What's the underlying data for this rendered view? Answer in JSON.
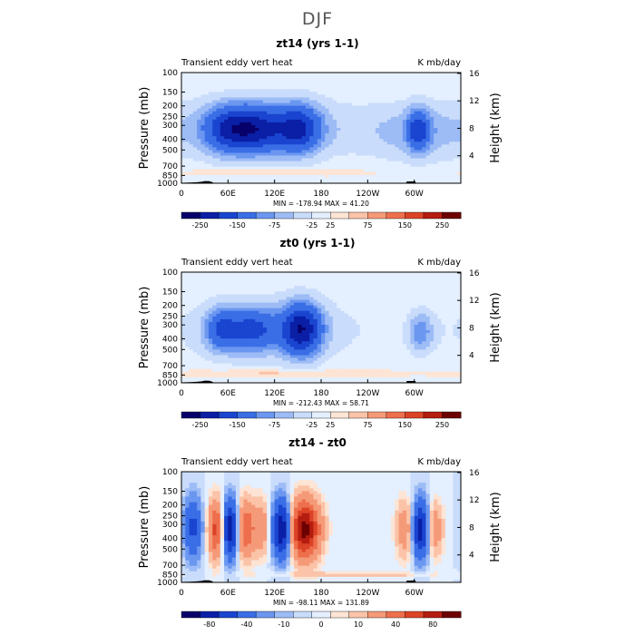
{
  "figure": {
    "title": "DJF"
  },
  "colors": {
    "full_palette": [
      "#08006a",
      "#0a1fa6",
      "#1a45d0",
      "#3a6ee6",
      "#6b97f0",
      "#9dbcf6",
      "#c9dcfb",
      "#e4efff",
      "#fde4d4",
      "#fbc3a8",
      "#f59a78",
      "#ee6f4d",
      "#dc4326",
      "#b51d10",
      "#6d0000"
    ],
    "diff_palette": [
      "#08006a",
      "#0a1fa6",
      "#1a45d0",
      "#3a6ee6",
      "#6b97f0",
      "#9dbcf6",
      "#c9dcfb",
      "#e4efff",
      "#fde4d4",
      "#fbc3a8",
      "#f59a78",
      "#ee6f4d",
      "#dc4326",
      "#b51d10",
      "#6d0000"
    ],
    "land": "#000000"
  },
  "chart_data": [
    {
      "type": "heatmap",
      "title": "zt14 (yrs 1-1)",
      "left_label": "Transient eddy vert heat",
      "right_label": "K mb/day",
      "ylabel": "Pressure  (mb)",
      "ylabel_right": "Height  (km)",
      "stats": "MIN = -178.94   MAX =  41.20",
      "min": -178.94,
      "max": 41.2,
      "x_ticks": [
        "0",
        "60E",
        "120E",
        "180",
        "120W",
        "60W"
      ],
      "y_ticks": [
        "100",
        "150",
        "200",
        "250",
        "300",
        "400",
        "500",
        "700",
        "850",
        "1000"
      ],
      "height_ticks": [
        "16",
        "12",
        "8",
        "4"
      ],
      "colorbar_labels": [
        "-250",
        "-150",
        "-75",
        "-25",
        "25",
        "75",
        "150",
        "250"
      ],
      "xlim": [
        0,
        360
      ],
      "ylim": [
        1000,
        100
      ],
      "log_y": true,
      "features": [
        {
          "lon": 60,
          "p": 325,
          "v": -150,
          "wlon": 22,
          "wz": 0.34
        },
        {
          "lon": 98,
          "p": 325,
          "v": -150,
          "wlon": 22,
          "wz": 0.34
        },
        {
          "lon": 150,
          "p": 320,
          "v": -170,
          "wlon": 20,
          "wz": 0.34
        },
        {
          "lon": 305,
          "p": 330,
          "v": -130,
          "wlon": 10,
          "wz": 0.3
        },
        {
          "lon": 110,
          "p": 320,
          "v": -60,
          "wlon": 110,
          "wz": 0.5
        },
        {
          "lon": 300,
          "p": 350,
          "v": -50,
          "wlon": 40,
          "wz": 0.45
        },
        {
          "lon": 120,
          "p": 800,
          "v": 35,
          "wlon": 80,
          "wz": 0.05
        }
      ]
    },
    {
      "type": "heatmap",
      "title": "zt0 (yrs 1-1)",
      "left_label": "Transient eddy vert heat",
      "right_label": "K mb/day",
      "ylabel": "Pressure  (mb)",
      "ylabel_right": "Height  (km)",
      "stats": "MIN = -212.43   MAX =  58.71",
      "min": -212.43,
      "max": 58.71,
      "x_ticks": [
        "0",
        "60E",
        "120E",
        "180",
        "120W",
        "60W"
      ],
      "y_ticks": [
        "100",
        "150",
        "200",
        "250",
        "300",
        "400",
        "500",
        "700",
        "850",
        "1000"
      ],
      "height_ticks": [
        "16",
        "12",
        "8",
        "4"
      ],
      "colorbar_labels": [
        "-250",
        "-150",
        "-75",
        "-25",
        "25",
        "75",
        "150",
        "250"
      ],
      "xlim": [
        0,
        360
      ],
      "ylim": [
        1000,
        100
      ],
      "log_y": true,
      "features": [
        {
          "lon": 50,
          "p": 330,
          "v": -100,
          "wlon": 14,
          "wz": 0.3
        },
        {
          "lon": 90,
          "p": 330,
          "v": -130,
          "wlon": 24,
          "wz": 0.32
        },
        {
          "lon": 155,
          "p": 330,
          "v": -210,
          "wlon": 18,
          "wz": 0.38
        },
        {
          "lon": 308,
          "p": 350,
          "v": -80,
          "wlon": 12,
          "wz": 0.3
        },
        {
          "lon": 110,
          "p": 330,
          "v": -45,
          "wlon": 110,
          "wz": 0.55
        },
        {
          "lon": 120,
          "p": 820,
          "v": 40,
          "wlon": 90,
          "wz": 0.05
        }
      ]
    },
    {
      "type": "heatmap",
      "title": "zt14 - zt0",
      "left_label": "Transient eddy vert heat",
      "right_label": "K mb/day",
      "ylabel": "Pressure  (mb)",
      "ylabel_right": "Height  (km)",
      "stats": "MIN = -98.11   MAX = 131.89",
      "min": -98.11,
      "max": 131.89,
      "x_ticks": [
        "0",
        "60E",
        "120E",
        "180",
        "120W",
        "60W"
      ],
      "y_ticks": [
        "100",
        "150",
        "200",
        "250",
        "300",
        "400",
        "500",
        "700",
        "850",
        "1000"
      ],
      "height_ticks": [
        "16",
        "12",
        "8",
        "4"
      ],
      "colorbar_labels": [
        "-80",
        "-40",
        "-10",
        "0",
        "10",
        "40",
        "80"
      ],
      "xlim": [
        0,
        360
      ],
      "ylim": [
        1000,
        100
      ],
      "log_y": true,
      "features": [
        {
          "lon": 15,
          "p": 320,
          "v": -45,
          "wlon": 8,
          "wz": 0.45
        },
        {
          "lon": 45,
          "p": 330,
          "v": 70,
          "wlon": 7,
          "wz": 0.42
        },
        {
          "lon": 63,
          "p": 330,
          "v": -80,
          "wlon": 8,
          "wz": 0.42
        },
        {
          "lon": 82,
          "p": 330,
          "v": 60,
          "wlon": 8,
          "wz": 0.42
        },
        {
          "lon": 103,
          "p": 320,
          "v": 35,
          "wlon": 8,
          "wz": 0.4
        },
        {
          "lon": 130,
          "p": 330,
          "v": -90,
          "wlon": 9,
          "wz": 0.42
        },
        {
          "lon": 158,
          "p": 330,
          "v": 110,
          "wlon": 14,
          "wz": 0.42
        },
        {
          "lon": 290,
          "p": 330,
          "v": 40,
          "wlon": 9,
          "wz": 0.42
        },
        {
          "lon": 308,
          "p": 330,
          "v": -80,
          "wlon": 9,
          "wz": 0.42
        },
        {
          "lon": 325,
          "p": 330,
          "v": 40,
          "wlon": 8,
          "wz": 0.4
        },
        {
          "lon": 220,
          "p": 850,
          "v": 15,
          "wlon": 70,
          "wz": 0.04
        }
      ]
    }
  ]
}
